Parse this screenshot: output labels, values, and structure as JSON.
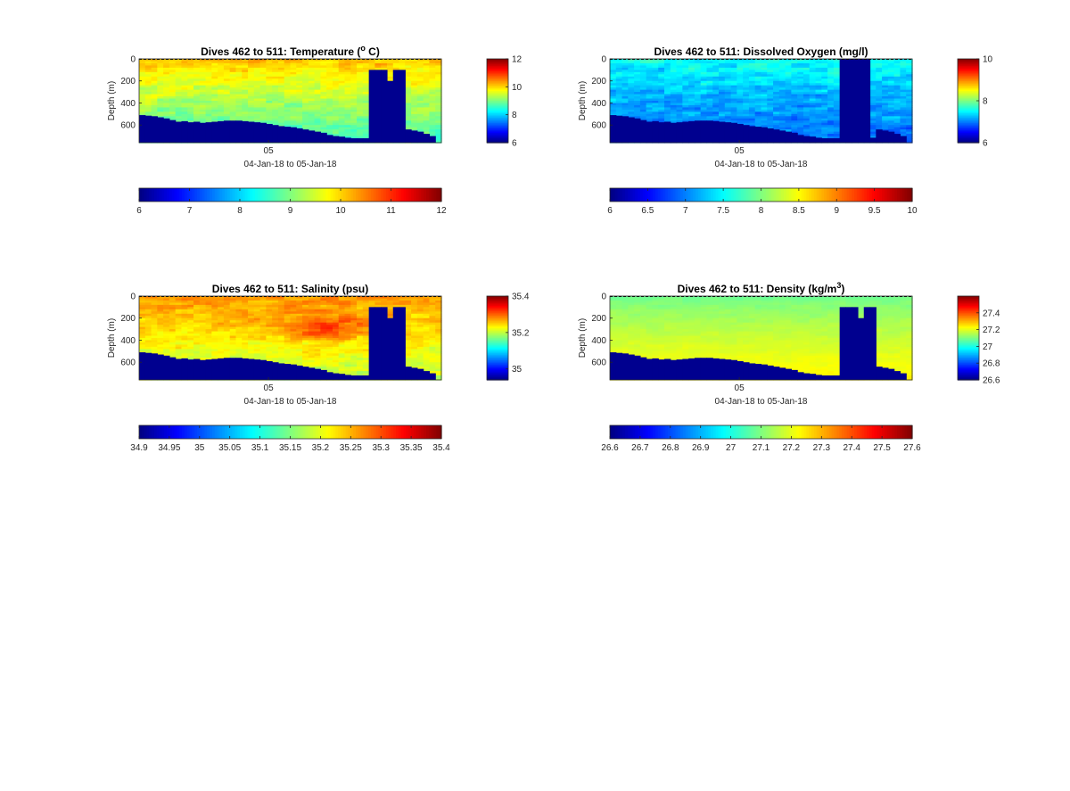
{
  "figure": {
    "background": "#ffffff"
  },
  "colormap": "jet",
  "chart_data": [
    {
      "type": "heatmap",
      "id": "temperature",
      "title_main": "Dives 462 to 511: Temperature (",
      "title_sup": "o",
      "title_tail": " C)",
      "ylabel": "Depth (m)",
      "xtick": "05",
      "xlabel": "04-Jan-18 to 05-Jan-18",
      "y_ticks": [
        "0",
        "200",
        "400",
        "600"
      ],
      "ylim": [
        0,
        760
      ],
      "clim": [
        6,
        12
      ],
      "side_colorbar_ticks": [
        {
          "label": "6",
          "v": 6
        },
        {
          "label": "8",
          "v": 8
        },
        {
          "label": "10",
          "v": 10
        },
        {
          "label": "12",
          "v": 12
        }
      ],
      "bottom_colorbar_ticks": [
        "6",
        "7",
        "8",
        "9",
        "10",
        "11",
        "12"
      ],
      "field": {
        "surface": 10.2,
        "deep": 8.6,
        "noise": 0.45,
        "warm_patch": 0
      },
      "seafloor_depth_m": [
        510,
        515,
        520,
        530,
        540,
        555,
        570,
        565,
        575,
        570,
        580,
        575,
        570,
        565,
        560,
        560,
        560,
        565,
        570,
        575,
        580,
        590,
        600,
        610,
        615,
        620,
        630,
        640,
        650,
        660,
        670,
        690,
        700,
        705,
        715,
        720,
        720,
        720,
        715,
        715,
        715,
        715,
        715,
        715,
        640,
        650,
        660,
        680,
        700,
        760
      ],
      "gaps": [
        {
          "from": 38,
          "to": 43,
          "tops": [
            100,
            100,
            100,
            200,
            100,
            100
          ]
        }
      ]
    },
    {
      "type": "heatmap",
      "id": "oxygen",
      "title_main": "Dives 462 to 511: Dissolved Oxygen (mg/l)",
      "title_sup": "",
      "title_tail": "",
      "ylabel": "Depth (m)",
      "xtick": "05",
      "xlabel": "04-Jan-18 to 05-Jan-18",
      "y_ticks": [
        "0",
        "200",
        "400",
        "600"
      ],
      "ylim": [
        0,
        760
      ],
      "clim": [
        6,
        10
      ],
      "side_colorbar_ticks": [
        {
          "label": "6",
          "v": 6
        },
        {
          "label": "8",
          "v": 8
        },
        {
          "label": "10",
          "v": 10
        }
      ],
      "bottom_colorbar_ticks": [
        "6",
        "6.5",
        "7",
        "7.5",
        "8",
        "8.5",
        "9",
        "9.5",
        "10"
      ],
      "field": {
        "surface": 7.6,
        "deep": 6.9,
        "noise": 0.35,
        "warm_patch": 0
      },
      "seafloor_depth_m": [
        510,
        515,
        520,
        530,
        540,
        555,
        570,
        565,
        575,
        570,
        580,
        575,
        570,
        565,
        560,
        560,
        560,
        565,
        570,
        575,
        580,
        590,
        600,
        610,
        615,
        620,
        630,
        640,
        650,
        660,
        670,
        690,
        700,
        705,
        715,
        720,
        720,
        720,
        715,
        715,
        715,
        715,
        715,
        715,
        640,
        650,
        660,
        680,
        700,
        760
      ],
      "gaps": [
        {
          "from": 38,
          "to": 42,
          "tops": [
            0,
            0,
            0,
            0,
            0
          ]
        }
      ]
    },
    {
      "type": "heatmap",
      "id": "salinity",
      "title_main": "Dives 462 to 511: Salinity (psu)",
      "title_sup": "",
      "title_tail": "",
      "ylabel": "Depth (m)",
      "xtick": "05",
      "xlabel": "04-Jan-18 to 05-Jan-18",
      "y_ticks": [
        "0",
        "200",
        "400",
        "600"
      ],
      "ylim": [
        0,
        760
      ],
      "clim": [
        34.94,
        35.4
      ],
      "side_colorbar_ticks": [
        {
          "label": "35",
          "v": 35
        },
        {
          "label": "35.2",
          "v": 35.2
        },
        {
          "label": "35.4",
          "v": 35.4
        }
      ],
      "bottom_colorbar_ticks": [
        "34.9",
        "34.95",
        "35",
        "35.05",
        "35.1",
        "35.15",
        "35.2",
        "35.25",
        "35.3",
        "35.35",
        "35.4"
      ],
      "field": {
        "surface": 35.28,
        "deep": 35.2,
        "noise": 0.035,
        "warm_patch": 0.07
      },
      "seafloor_depth_m": [
        510,
        515,
        520,
        530,
        540,
        555,
        570,
        565,
        575,
        570,
        580,
        575,
        570,
        565,
        560,
        560,
        560,
        565,
        570,
        575,
        580,
        590,
        600,
        610,
        615,
        620,
        630,
        640,
        650,
        660,
        670,
        690,
        700,
        705,
        715,
        720,
        720,
        720,
        715,
        715,
        715,
        715,
        715,
        715,
        640,
        650,
        660,
        680,
        700,
        760
      ],
      "gaps": [
        {
          "from": 38,
          "to": 43,
          "tops": [
            100,
            100,
            100,
            200,
            100,
            100
          ]
        }
      ]
    },
    {
      "type": "heatmap",
      "id": "density",
      "title_main": "Dives 462 to 511: Density (kg/m",
      "title_sup": "3",
      "title_tail": ")",
      "ylabel": "Depth (m)",
      "xtick": "05",
      "xlabel": "04-Jan-18 to 05-Jan-18",
      "y_ticks": [
        "0",
        "200",
        "400",
        "600"
      ],
      "ylim": [
        0,
        760
      ],
      "clim": [
        26.6,
        27.6
      ],
      "side_colorbar_ticks": [
        {
          "label": "26.6",
          "v": 26.6
        },
        {
          "label": "26.8",
          "v": 26.8
        },
        {
          "label": "27",
          "v": 27
        },
        {
          "label": "27.2",
          "v": 27.2
        },
        {
          "label": "27.4",
          "v": 27.4
        }
      ],
      "bottom_colorbar_ticks": [
        "26.6",
        "26.7",
        "26.8",
        "26.9",
        "27",
        "27.1",
        "27.2",
        "27.3",
        "27.4",
        "27.5",
        "27.6"
      ],
      "field": {
        "surface": 27.08,
        "deep": 27.24,
        "noise": 0.02,
        "warm_patch": 0
      },
      "seafloor_depth_m": [
        510,
        515,
        520,
        530,
        540,
        555,
        570,
        565,
        575,
        570,
        580,
        575,
        570,
        565,
        560,
        560,
        560,
        565,
        570,
        575,
        580,
        590,
        600,
        610,
        615,
        620,
        630,
        640,
        650,
        660,
        670,
        690,
        700,
        705,
        715,
        720,
        720,
        720,
        715,
        715,
        715,
        715,
        715,
        715,
        640,
        650,
        660,
        680,
        700,
        760
      ],
      "gaps": [
        {
          "from": 38,
          "to": 43,
          "tops": [
            100,
            100,
            100,
            200,
            100,
            100
          ]
        }
      ]
    }
  ]
}
